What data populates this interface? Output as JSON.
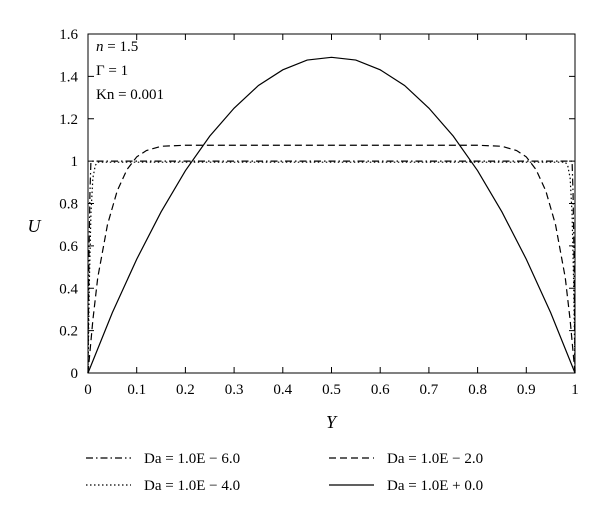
{
  "chart_data": {
    "type": "line",
    "xlabel": "Y",
    "ylabel": "U",
    "xlim": [
      0,
      1
    ],
    "ylim": [
      0,
      1.6
    ],
    "xticks": [
      "0",
      "0.1",
      "0.2",
      "0.3",
      "0.4",
      "0.5",
      "0.6",
      "0.7",
      "0.8",
      "0.9",
      "1"
    ],
    "yticks": [
      "0",
      "0.2",
      "0.4",
      "0.6",
      "0.8",
      "1",
      "1.2",
      "1.4",
      "1.6"
    ],
    "annotations": [
      "n = 1.5",
      "Γ = 1",
      "Kn = 0.001"
    ],
    "grid": false,
    "legend_position": "bottom",
    "series": [
      {
        "name": "Da = 1.0E − 6.0",
        "style": "dash-dot",
        "x": [
          0,
          0.002,
          0.004,
          0.006,
          0.5,
          0.994,
          0.996,
          0.998,
          1
        ],
        "y": [
          0,
          0.55,
          0.85,
          1.0,
          1.0,
          1.0,
          0.85,
          0.55,
          0
        ]
      },
      {
        "name": "Da = 1.0E − 2.0",
        "style": "dashed",
        "x": [
          0,
          0.01,
          0.02,
          0.04,
          0.06,
          0.08,
          0.1,
          0.12,
          0.15,
          0.2,
          0.3,
          0.4,
          0.5,
          0.6,
          0.7,
          0.8,
          0.85,
          0.88,
          0.9,
          0.92,
          0.94,
          0.96,
          0.98,
          0.99,
          1
        ],
        "y": [
          0,
          0.25,
          0.45,
          0.7,
          0.86,
          0.96,
          1.02,
          1.05,
          1.07,
          1.075,
          1.075,
          1.075,
          1.075,
          1.075,
          1.075,
          1.075,
          1.07,
          1.05,
          1.02,
          0.96,
          0.86,
          0.7,
          0.45,
          0.25,
          0
        ]
      },
      {
        "name": "Da = 1.0E − 4.0",
        "style": "dotted",
        "x": [
          0,
          0.003,
          0.006,
          0.01,
          0.015,
          0.02,
          0.5,
          0.98,
          0.985,
          0.99,
          0.994,
          0.997,
          1
        ],
        "y": [
          0,
          0.45,
          0.75,
          0.92,
          0.98,
          0.995,
          0.995,
          0.995,
          0.98,
          0.92,
          0.75,
          0.45,
          0
        ]
      },
      {
        "name": "Da = 1.0E + 0.0",
        "style": "solid",
        "x": [
          0,
          0.05,
          0.1,
          0.15,
          0.2,
          0.25,
          0.3,
          0.35,
          0.4,
          0.45,
          0.5,
          0.55,
          0.6,
          0.65,
          0.7,
          0.75,
          0.8,
          0.85,
          0.9,
          0.95,
          1
        ],
        "y": [
          0,
          0.285,
          0.537,
          0.76,
          0.955,
          1.118,
          1.25,
          1.357,
          1.431,
          1.477,
          1.49,
          1.477,
          1.431,
          1.357,
          1.25,
          1.118,
          0.955,
          0.76,
          0.537,
          0.285,
          0
        ]
      }
    ]
  }
}
